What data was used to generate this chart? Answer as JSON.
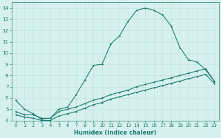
{
  "xlabel": "Humidex (Indice chaleur)",
  "background_color": "#d6f0ef",
  "grid_color": "#b8e0de",
  "line_color": "#1a7a6e",
  "xlim": [
    -0.5,
    23.5
  ],
  "ylim": [
    4,
    14.5
  ],
  "xticks": [
    0,
    1,
    2,
    3,
    4,
    5,
    6,
    7,
    8,
    9,
    10,
    11,
    12,
    13,
    14,
    15,
    16,
    17,
    18,
    19,
    20,
    21,
    22,
    23
  ],
  "yticks": [
    4,
    5,
    6,
    7,
    8,
    9,
    10,
    11,
    12,
    13,
    14
  ],
  "line1_x": [
    0,
    1,
    2,
    3,
    4,
    5,
    6,
    7,
    8,
    9,
    10,
    11,
    12,
    13,
    14,
    15,
    16,
    17,
    18,
    19,
    20,
    21,
    22,
    23
  ],
  "line1_y": [
    5.8,
    5.0,
    4.6,
    4.1,
    4.2,
    5.0,
    5.2,
    6.3,
    7.6,
    8.9,
    9.0,
    10.8,
    11.5,
    12.8,
    13.8,
    14.0,
    13.8,
    13.4,
    12.4,
    10.5,
    9.4,
    9.2,
    8.5,
    7.5
  ],
  "line2_x": [
    0,
    1,
    2,
    3,
    4,
    5,
    6,
    7,
    8,
    9,
    10,
    11,
    12,
    13,
    14,
    15,
    16,
    17,
    18,
    19,
    20,
    21,
    22,
    23
  ],
  "line2_y": [
    4.8,
    4.5,
    4.5,
    4.2,
    4.2,
    4.8,
    5.0,
    5.2,
    5.5,
    5.8,
    6.0,
    6.3,
    6.5,
    6.7,
    7.0,
    7.2,
    7.4,
    7.6,
    7.8,
    8.0,
    8.2,
    8.4,
    8.6,
    7.5
  ],
  "line3_x": [
    0,
    1,
    2,
    3,
    4,
    5,
    6,
    7,
    8,
    9,
    10,
    11,
    12,
    13,
    14,
    15,
    16,
    17,
    18,
    19,
    20,
    21,
    22,
    23
  ],
  "line3_y": [
    4.5,
    4.3,
    4.2,
    4.0,
    4.0,
    4.4,
    4.6,
    4.8,
    5.1,
    5.4,
    5.6,
    5.9,
    6.1,
    6.3,
    6.5,
    6.7,
    6.9,
    7.1,
    7.3,
    7.5,
    7.7,
    7.9,
    8.1,
    7.3
  ],
  "tick_labelsize": 5.0,
  "xlabel_fontsize": 6.0,
  "marker_size": 1.5,
  "linewidth": 0.8
}
